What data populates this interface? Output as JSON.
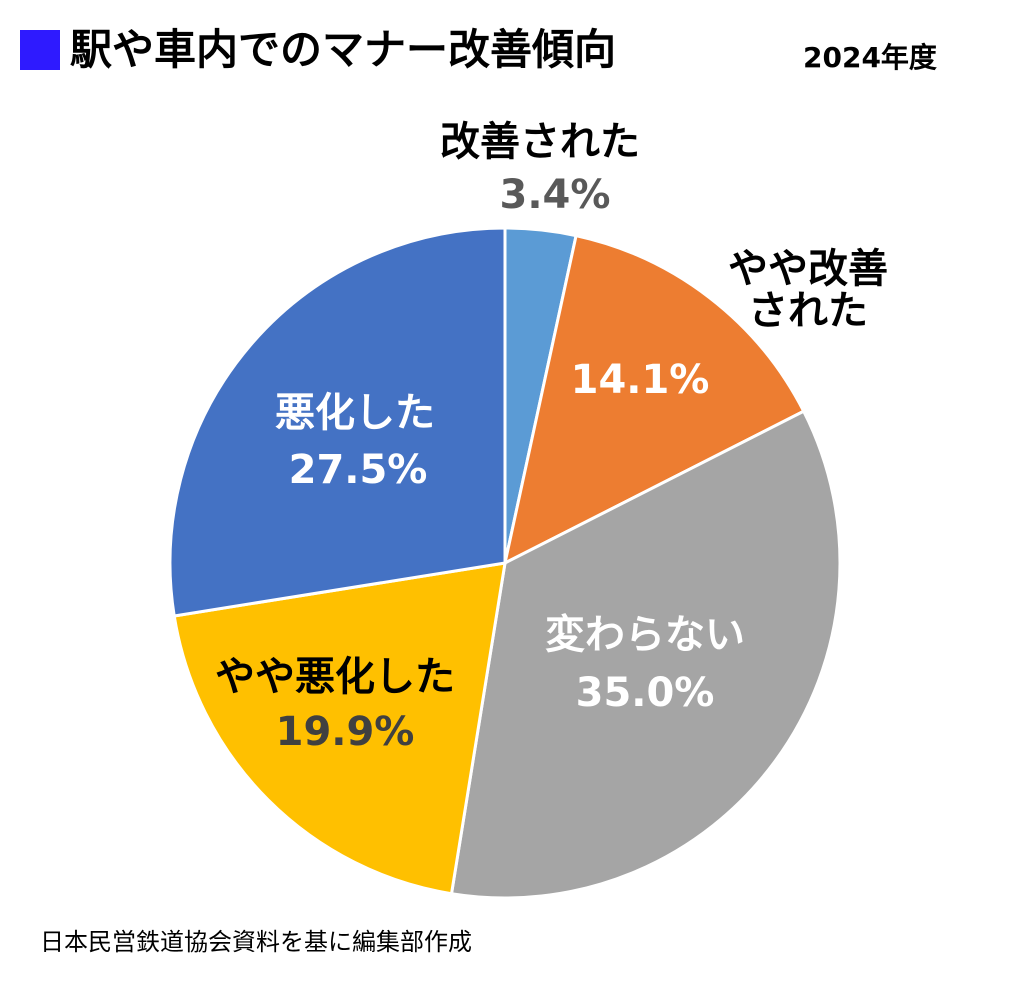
{
  "chart_data": {
    "type": "pie",
    "title": "駅や車内でのマナー改善傾向",
    "subtitle": "2024年度",
    "source": "日本民営鉄道協会資料を基に編集部作成",
    "categories": [
      "改善された",
      "やや改善\nされた",
      "変わらない",
      "やや悪化した",
      "悪化した"
    ],
    "values": [
      3.4,
      14.1,
      35.0,
      19.9,
      27.5
    ],
    "value_labels": [
      "3.4%",
      "14.1%",
      "35.0%",
      "19.9%",
      "27.5%"
    ],
    "colors": [
      "#5b9bd5",
      "#ed7d31",
      "#a5a5a5",
      "#ffc000",
      "#4472c4"
    ]
  }
}
